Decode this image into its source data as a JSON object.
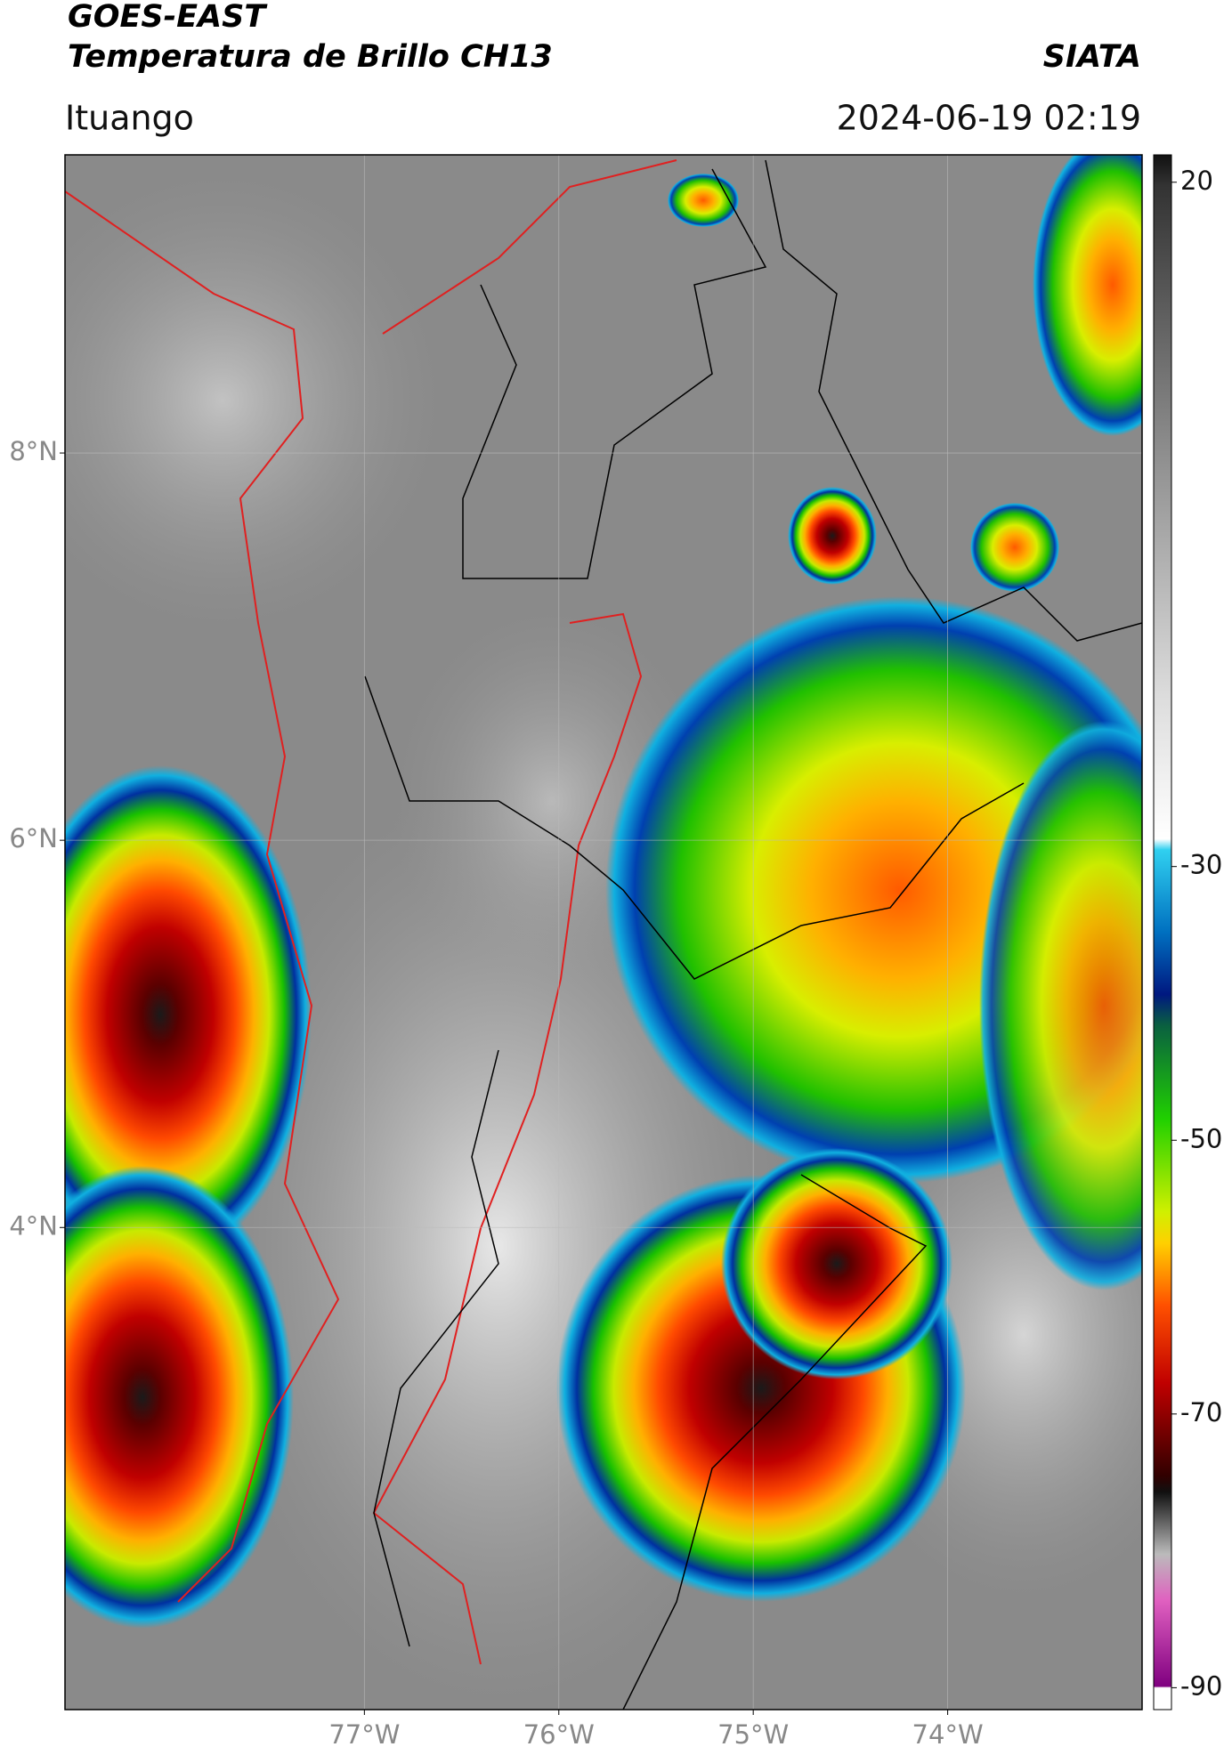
{
  "header": {
    "satellite": "GOES-EAST",
    "product": "Temperatura de Brillo CH13",
    "organization": "SIATA",
    "region": "Ituango",
    "timestamp": "2024-06-19 02:19"
  },
  "map": {
    "xlim": [
      -78.54,
      -73.0
    ],
    "ylim": [
      1.51,
      9.54
    ],
    "xticks": [
      {
        "value": -77,
        "label": "77°W"
      },
      {
        "value": -76,
        "label": "76°W"
      },
      {
        "value": -75,
        "label": "75°W"
      },
      {
        "value": -74,
        "label": "74°W"
      }
    ],
    "yticks": [
      {
        "value": 4,
        "label": "4°N"
      },
      {
        "value": 6,
        "label": "6°N"
      },
      {
        "value": 8,
        "label": "8°N"
      }
    ],
    "grid": true
  },
  "colorbar": {
    "clim": [
      -91.6,
      22.0
    ],
    "ticks": [
      20,
      -30,
      -50,
      -70,
      -90
    ]
  }
}
